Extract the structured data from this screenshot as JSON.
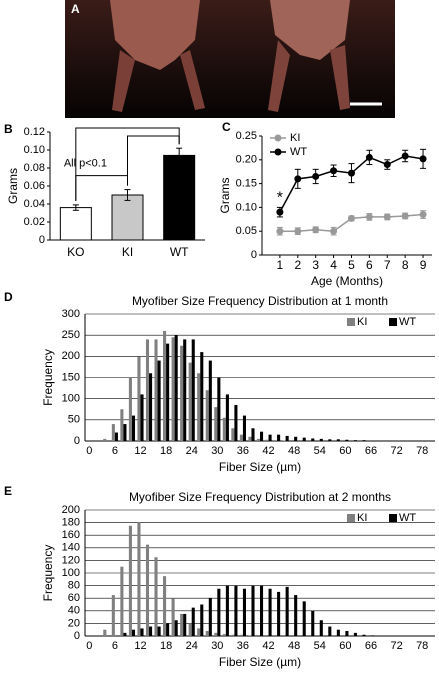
{
  "photo_panel": {
    "label": "A"
  },
  "chart_data": [
    {
      "type": "bar",
      "panel": "B",
      "ylabel": "Grams",
      "annotation": "All p<0.1",
      "categories": [
        "KO",
        "KI",
        "WT"
      ],
      "values": [
        0.036,
        0.05,
        0.094
      ],
      "errors": [
        0.003,
        0.006,
        0.008
      ],
      "colors": [
        "#ffffff",
        "#c8c8c8",
        "#000000"
      ],
      "ylim": [
        0,
        0.12
      ],
      "yticks": [
        0,
        0.02,
        0.04,
        0.06,
        0.08,
        {
          "value": 0.1,
          "label": "0.10"
        },
        0.12
      ],
      "grid": false
    },
    {
      "type": "line",
      "panel": "C",
      "ylabel": "Grams",
      "xlabel": "Age (Months)",
      "annotation": "*",
      "legend": "top-left",
      "x": [
        1,
        2,
        3,
        4,
        5,
        6,
        7,
        8,
        9
      ],
      "series": [
        {
          "name": "KI",
          "color": "#999999",
          "values": [
            0.05,
            0.05,
            0.053,
            0.05,
            0.077,
            0.08,
            0.08,
            0.082,
            0.085
          ],
          "errors": [
            0.008,
            0.007,
            0.006,
            0.008,
            0.005,
            0.007,
            0.006,
            0.006,
            0.008
          ]
        },
        {
          "name": "WT",
          "color": "#000000",
          "values": [
            0.09,
            0.16,
            0.165,
            0.177,
            0.172,
            0.205,
            0.19,
            0.208,
            0.202
          ],
          "errors": [
            0.01,
            0.02,
            0.015,
            0.012,
            0.02,
            0.015,
            0.01,
            0.012,
            0.02
          ]
        }
      ],
      "xlim": [
        0,
        9.5
      ],
      "xticks": [
        1,
        2,
        3,
        4,
        5,
        6,
        7,
        8,
        9
      ],
      "ylim": [
        0,
        0.25
      ],
      "yticks": [
        0,
        0.05,
        {
          "value": 0.1,
          "label": "0.10"
        },
        0.15,
        {
          "value": 0.2,
          "label": "0.20"
        },
        0.25
      ],
      "grid": false
    },
    {
      "type": "bar",
      "panel": "D",
      "title": "Myofiber Size Frequency Distribution at 1 month",
      "xlabel": "Fiber Size (µm)",
      "ylabel": "Frequency",
      "legend": "top-right",
      "categories": [
        "0",
        null,
        null,
        "6",
        null,
        null,
        "12",
        null,
        null,
        "18",
        null,
        null,
        "24",
        null,
        null,
        "30",
        null,
        null,
        "36",
        null,
        null,
        "42",
        null,
        null,
        "48",
        null,
        null,
        "54",
        null,
        null,
        "60",
        null,
        null,
        "66",
        null,
        null,
        "72",
        null,
        null,
        "78",
        null
      ],
      "series": [
        {
          "name": "KI",
          "color": "#808080",
          "values": [
            0,
            0,
            5,
            40,
            75,
            150,
            200,
            240,
            240,
            260,
            245,
            225,
            185,
            160,
            120,
            80,
            55,
            30,
            15,
            10,
            5,
            3,
            2,
            1,
            0,
            0,
            0,
            0,
            0,
            0,
            0,
            0,
            0,
            0,
            0,
            0,
            0,
            0,
            0,
            0,
            0
          ]
        },
        {
          "name": "WT",
          "color": "#000000",
          "values": [
            0,
            0,
            0,
            20,
            40,
            60,
            110,
            160,
            190,
            230,
            250,
            240,
            240,
            210,
            190,
            150,
            110,
            85,
            60,
            30,
            22,
            15,
            15,
            12,
            10,
            8,
            6,
            5,
            4,
            4,
            3,
            2,
            2,
            1,
            1,
            1,
            1,
            0,
            0,
            0,
            0
          ]
        }
      ],
      "ylim": [
        0,
        300
      ],
      "yticks": [
        0,
        50,
        100,
        150,
        200,
        250,
        300
      ],
      "grid": true
    },
    {
      "type": "bar",
      "panel": "E",
      "title": "Myofiber Size Frequency Distribution at 2 months",
      "xlabel": "Fiber Size (µm)",
      "ylabel": "Frequency",
      "legend": "top-right",
      "categories": [
        "0",
        null,
        null,
        "6",
        null,
        null,
        "12",
        null,
        null,
        "18",
        null,
        null,
        "24",
        null,
        null,
        "30",
        null,
        null,
        "36",
        null,
        null,
        "42",
        null,
        null,
        "48",
        null,
        null,
        "54",
        null,
        null,
        "60",
        null,
        null,
        "66",
        null,
        null,
        "72",
        null,
        null,
        "78",
        null
      ],
      "series": [
        {
          "name": "KI",
          "color": "#808080",
          "values": [
            0,
            0,
            10,
            65,
            110,
            175,
            180,
            145,
            125,
            95,
            60,
            35,
            20,
            12,
            8,
            5,
            3,
            2,
            2,
            1,
            0,
            0,
            0,
            0,
            0,
            0,
            0,
            0,
            0,
            0,
            0,
            0,
            0,
            0,
            0,
            0,
            0,
            0,
            0,
            0,
            0
          ]
        },
        {
          "name": "WT",
          "color": "#000000",
          "values": [
            0,
            0,
            0,
            0,
            5,
            10,
            12,
            15,
            15,
            20,
            25,
            35,
            45,
            50,
            60,
            75,
            80,
            80,
            75,
            80,
            80,
            75,
            70,
            78,
            65,
            55,
            40,
            25,
            15,
            10,
            8,
            5,
            2,
            1,
            0,
            0,
            0,
            0,
            0,
            0,
            0
          ]
        }
      ],
      "ylim": [
        0,
        200
      ],
      "yticks": [
        0,
        20,
        40,
        60,
        80,
        100,
        120,
        140,
        160,
        180,
        200
      ],
      "grid": true
    }
  ]
}
